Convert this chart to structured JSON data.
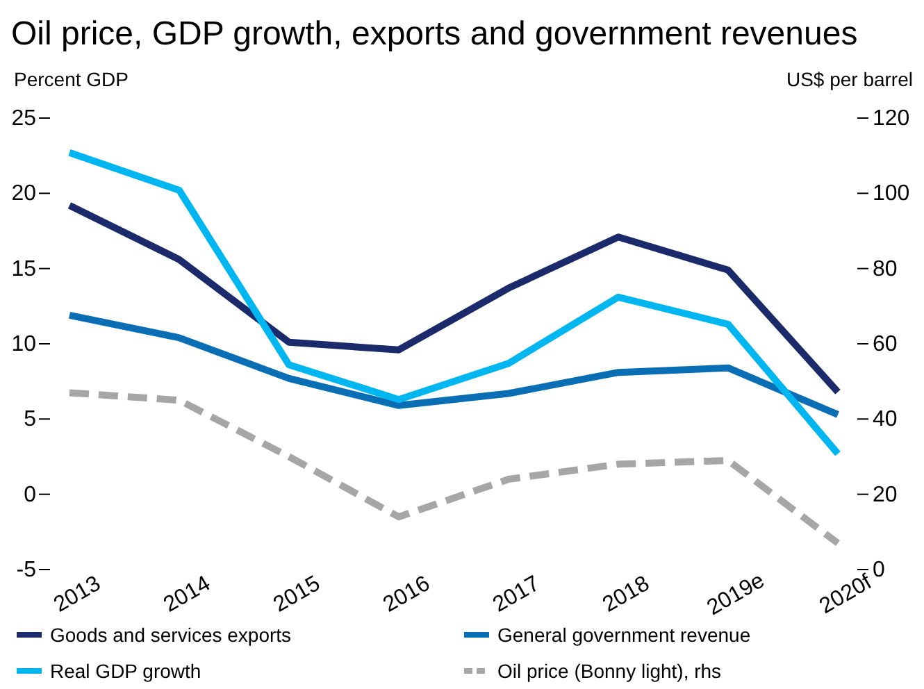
{
  "chart_data": {
    "type": "line",
    "title": "Oil price, GDP growth, exports and government revenues",
    "ylabel": "Percent GDP",
    "y2label": "US$ per barrel",
    "categories": [
      "2013",
      "2014",
      "2015",
      "2016",
      "2017",
      "2018",
      "2019e",
      "2020f"
    ],
    "series": [
      {
        "name": "Goods and services exports",
        "color": "#1b2a6b",
        "values": [
          19.2,
          15.6,
          10.1,
          9.6,
          13.7,
          17.1,
          14.9,
          6.8
        ]
      },
      {
        "name": "General government revenue",
        "color": "#0a6eb4",
        "values": [
          11.9,
          10.4,
          7.7,
          5.9,
          6.7,
          8.1,
          8.4,
          5.3
        ]
      },
      {
        "name": "Real GDP growth",
        "color": "#00b6f0",
        "values": [
          22.7,
          20.2,
          8.6,
          6.3,
          8.7,
          13.1,
          11.3,
          2.7
        ]
      },
      {
        "name": "Oil price (Bonny light), rhs",
        "color": "#a6a6a6",
        "axis": "y2",
        "line_style": "dashed",
        "values": [
          47,
          45,
          30,
          14,
          24,
          28,
          29,
          7
        ]
      }
    ],
    "ylim": [
      -5,
      25
    ],
    "yticks": [
      -5,
      0,
      5,
      10,
      15,
      20,
      25
    ],
    "y2lim": [
      0,
      120
    ],
    "y2ticks": [
      0,
      20,
      40,
      60,
      80,
      100,
      120
    ],
    "grid": false,
    "legend": "bottom",
    "line_style": "solid"
  }
}
